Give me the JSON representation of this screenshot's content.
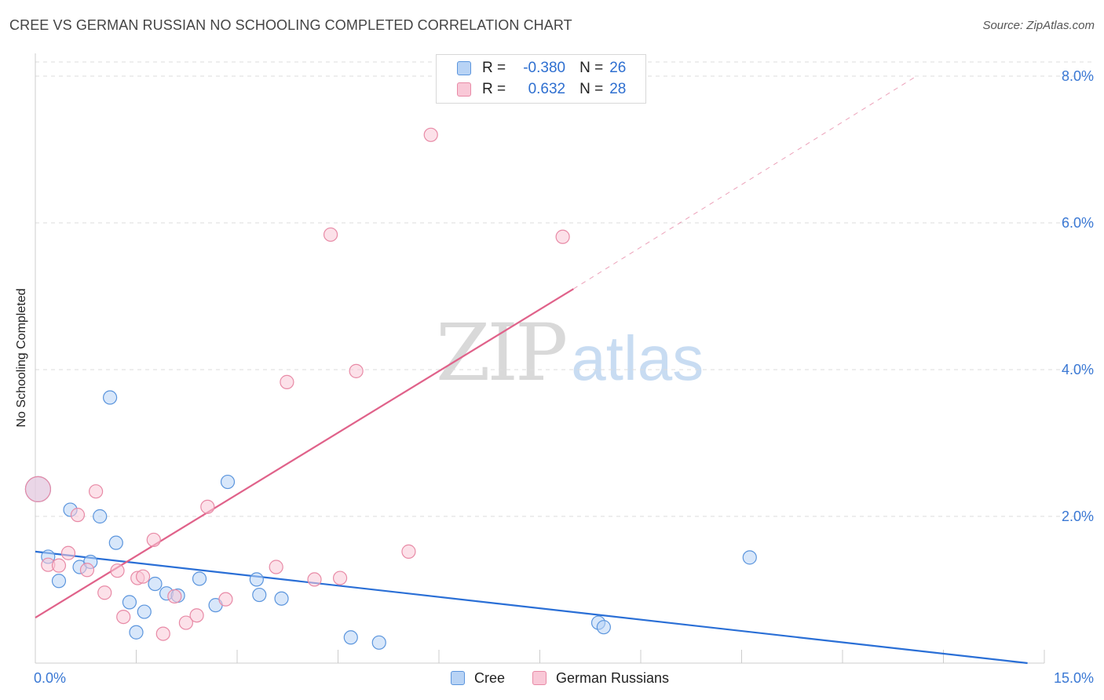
{
  "header": {
    "title": "CREE VS GERMAN RUSSIAN NO SCHOOLING COMPLETED CORRELATION CHART",
    "source": "Source: ZipAtlas.com"
  },
  "legend": {
    "rows": [
      {
        "r_label": "R =",
        "r_value": "-0.380",
        "n_label": "N =",
        "n_value": "26"
      },
      {
        "r_label": "R =",
        "r_value": "0.632",
        "n_label": "N =",
        "n_value": "28"
      }
    ],
    "series": [
      "Cree",
      "German Russians"
    ]
  },
  "watermark": {
    "zip": "ZIP",
    "atlas": "atlas"
  },
  "colors": {
    "cree_fill": "#b8d3f5",
    "cree_stroke": "#5b95dd",
    "cree_line": "#2a6fd6",
    "gr_fill": "#f9c8d7",
    "gr_stroke": "#e88aa6",
    "gr_line": "#e0628a",
    "tick_label": "#3a78d4",
    "grid": "#dddddd"
  },
  "chart_data": {
    "type": "scatter",
    "title": "CREE VS GERMAN RUSSIAN NO SCHOOLING COMPLETED CORRELATION CHART",
    "xlabel": "",
    "ylabel": "No Schooling Completed",
    "xlim": [
      0,
      15
    ],
    "ylim": [
      0,
      8
    ],
    "x_tick_labels": [
      {
        "value": 0,
        "label": "0.0%"
      },
      {
        "value": 15,
        "label": "15.0%"
      }
    ],
    "y_tick_labels": [
      {
        "value": 2,
        "label": "2.0%"
      },
      {
        "value": 4,
        "label": "4.0%"
      },
      {
        "value": 6,
        "label": "6.0%"
      },
      {
        "value": 8,
        "label": "8.0%"
      }
    ],
    "series": [
      {
        "name": "Cree",
        "r": -0.38,
        "n": 26,
        "trend": {
          "x0": 0,
          "y0": 1.52,
          "x1": 14.75,
          "y1": 0.0
        },
        "points": [
          {
            "x": 0.19,
            "y": 1.45
          },
          {
            "x": 0.35,
            "y": 1.12
          },
          {
            "x": 0.52,
            "y": 2.09
          },
          {
            "x": 0.66,
            "y": 1.31
          },
          {
            "x": 0.82,
            "y": 1.38
          },
          {
            "x": 0.96,
            "y": 2.0
          },
          {
            "x": 1.11,
            "y": 3.62
          },
          {
            "x": 1.2,
            "y": 1.64
          },
          {
            "x": 1.4,
            "y": 0.83
          },
          {
            "x": 1.5,
            "y": 0.42
          },
          {
            "x": 1.62,
            "y": 0.7
          },
          {
            "x": 1.78,
            "y": 1.08
          },
          {
            "x": 1.95,
            "y": 0.95
          },
          {
            "x": 2.12,
            "y": 0.92
          },
          {
            "x": 2.44,
            "y": 1.15
          },
          {
            "x": 2.68,
            "y": 0.79
          },
          {
            "x": 2.86,
            "y": 2.47
          },
          {
            "x": 3.29,
            "y": 1.14
          },
          {
            "x": 3.33,
            "y": 0.93
          },
          {
            "x": 3.66,
            "y": 0.88
          },
          {
            "x": 4.69,
            "y": 0.35
          },
          {
            "x": 5.11,
            "y": 0.28
          },
          {
            "x": 8.37,
            "y": 0.55
          },
          {
            "x": 8.45,
            "y": 0.49
          },
          {
            "x": 10.62,
            "y": 1.44
          },
          {
            "x": 0.04,
            "y": 2.37,
            "big": true
          }
        ]
      },
      {
        "name": "German Russians",
        "r": 0.632,
        "n": 28,
        "trend": {
          "x0": 0,
          "y0": 0.62,
          "x1": 8.0,
          "y1": 5.1
        },
        "trend_dashed": {
          "x0": 8.0,
          "y0": 5.1,
          "x1": 13.1,
          "y1": 8.0
        },
        "points": [
          {
            "x": 0.19,
            "y": 1.34
          },
          {
            "x": 0.35,
            "y": 1.33
          },
          {
            "x": 0.49,
            "y": 1.5
          },
          {
            "x": 0.63,
            "y": 2.02
          },
          {
            "x": 0.77,
            "y": 1.27
          },
          {
            "x": 0.9,
            "y": 2.34
          },
          {
            "x": 1.03,
            "y": 0.96
          },
          {
            "x": 1.22,
            "y": 1.26
          },
          {
            "x": 1.31,
            "y": 0.63
          },
          {
            "x": 1.52,
            "y": 1.16
          },
          {
            "x": 1.6,
            "y": 1.18
          },
          {
            "x": 1.76,
            "y": 1.68
          },
          {
            "x": 1.9,
            "y": 0.4
          },
          {
            "x": 2.07,
            "y": 0.91
          },
          {
            "x": 2.24,
            "y": 0.55
          },
          {
            "x": 2.4,
            "y": 0.65
          },
          {
            "x": 2.56,
            "y": 2.13
          },
          {
            "x": 2.83,
            "y": 0.87
          },
          {
            "x": 3.58,
            "y": 1.31
          },
          {
            "x": 3.74,
            "y": 3.83
          },
          {
            "x": 4.15,
            "y": 1.14
          },
          {
            "x": 4.39,
            "y": 5.84
          },
          {
            "x": 4.53,
            "y": 1.16
          },
          {
            "x": 4.77,
            "y": 3.98
          },
          {
            "x": 5.55,
            "y": 1.52
          },
          {
            "x": 5.88,
            "y": 7.2
          },
          {
            "x": 7.84,
            "y": 5.81
          },
          {
            "x": 0.04,
            "y": 2.37,
            "big": true
          }
        ]
      }
    ]
  }
}
